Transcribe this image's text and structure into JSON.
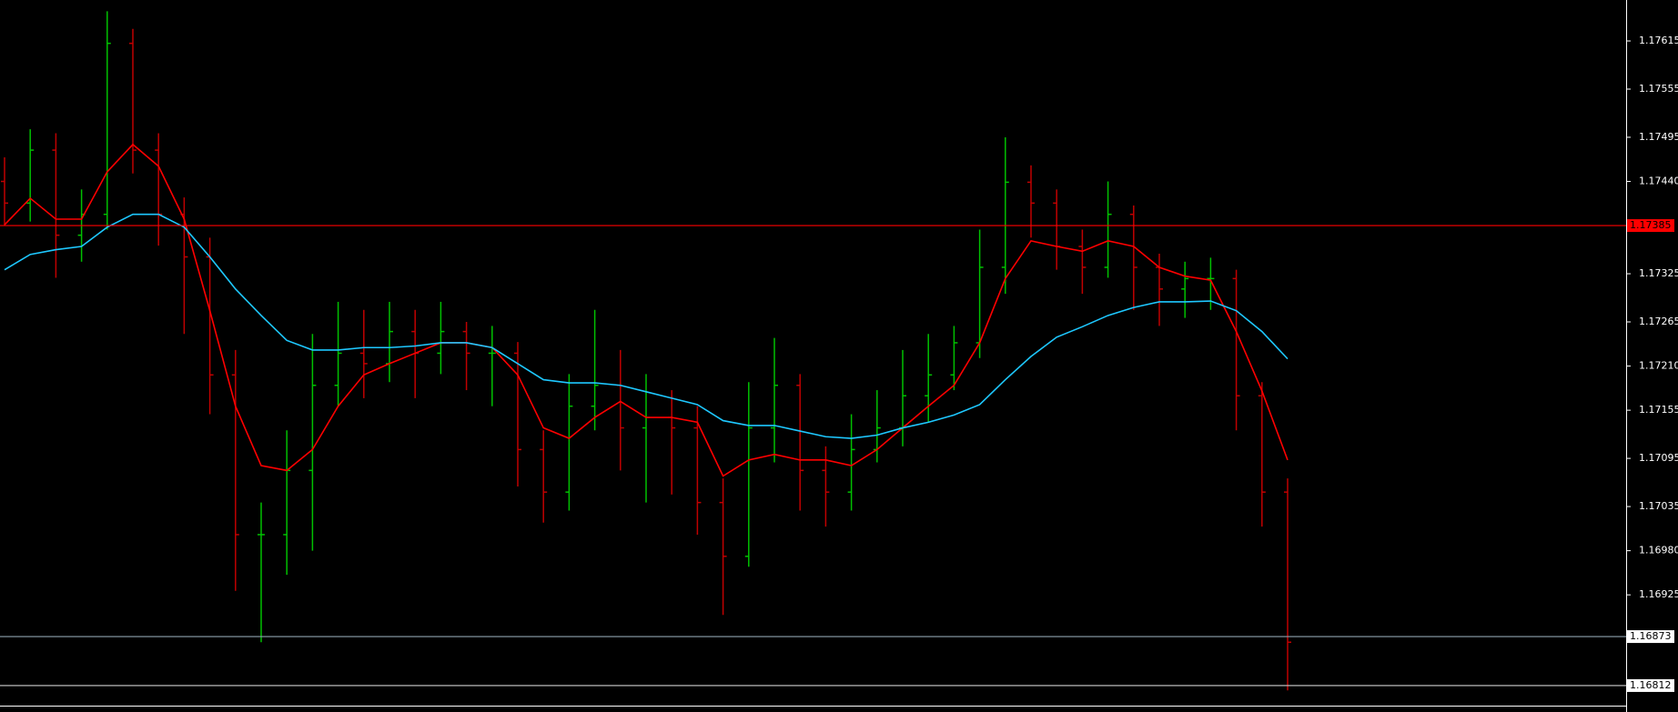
{
  "chart_data": {
    "type": "ohlc",
    "ylim": [
      1.16787,
      1.17666
    ],
    "yticks": [
      1.17615,
      1.17555,
      1.17495,
      {
        "value": 1.1744,
        "label": "1.17440"
      },
      1.17325,
      1.17265,
      {
        "value": 1.1721,
        "label": "1.17210"
      },
      1.17155,
      1.17095,
      1.17035,
      {
        "value": 1.1698,
        "label": "1.16980"
      },
      1.16925
    ],
    "up_color": "#00c000",
    "down_color": "#c00000",
    "open": [
      1.1744,
      1.17413,
      1.17479,
      1.17373,
      1.17399,
      1.17612,
      1.17479,
      1.17399,
      1.17346,
      1.17199,
      1.17,
      1.17,
      1.1708,
      1.17186,
      1.17226,
      1.17213,
      1.17253,
      1.17226,
      1.17253,
      1.17226,
      1.17226,
      1.17106,
      1.17053,
      1.1716,
      1.17186,
      1.17133,
      1.17146,
      1.17133,
      1.1704,
      1.16973,
      1.17133,
      1.17186,
      1.1708,
      1.17053,
      1.17106,
      1.17133,
      1.17173,
      1.17199,
      1.17239,
      1.17333,
      1.17439,
      1.17413,
      1.17359,
      1.17333,
      1.17399,
      1.17333,
      1.17306,
      1.17319,
      1.17319,
      1.17173,
      1.17053
    ],
    "high": [
      1.1747,
      1.17505,
      1.175,
      1.1743,
      1.17652,
      1.1763,
      1.175,
      1.1742,
      1.1737,
      1.1723,
      1.1704,
      1.1713,
      1.1725,
      1.1729,
      1.1728,
      1.1729,
      1.1728,
      1.1729,
      1.17265,
      1.1726,
      1.1724,
      1.1713,
      1.172,
      1.1728,
      1.1723,
      1.172,
      1.1718,
      1.1716,
      1.1707,
      1.1719,
      1.17245,
      1.172,
      1.1711,
      1.1715,
      1.1718,
      1.1723,
      1.1725,
      1.1726,
      1.1738,
      1.17495,
      1.1746,
      1.1743,
      1.1738,
      1.1744,
      1.1741,
      1.1735,
      1.1734,
      1.17345,
      1.1733,
      1.1719,
      1.1707
    ],
    "low": [
      1.17385,
      1.1739,
      1.1732,
      1.1734,
      1.1738,
      1.1745,
      1.1736,
      1.1725,
      1.1715,
      1.1693,
      1.16866,
      1.1695,
      1.1698,
      1.1716,
      1.1717,
      1.1719,
      1.1717,
      1.172,
      1.1718,
      1.1716,
      1.1706,
      1.17015,
      1.1703,
      1.1713,
      1.1708,
      1.1704,
      1.1705,
      1.17,
      1.169,
      1.1696,
      1.1709,
      1.1703,
      1.1701,
      1.1703,
      1.1709,
      1.1711,
      1.1714,
      1.1718,
      1.1722,
      1.173,
      1.1737,
      1.1733,
      1.173,
      1.1732,
      1.1728,
      1.1726,
      1.1727,
      1.1728,
      1.1713,
      1.1701,
      1.16806
    ],
    "close": [
      1.17413,
      1.17479,
      1.17373,
      1.17399,
      1.17612,
      1.17479,
      1.17399,
      1.17346,
      1.17199,
      1.17,
      1.17,
      1.1708,
      1.17186,
      1.17226,
      1.17213,
      1.17253,
      1.17226,
      1.17253,
      1.17226,
      1.17226,
      1.17106,
      1.17053,
      1.1716,
      1.17186,
      1.17133,
      1.17146,
      1.17133,
      1.1704,
      1.16973,
      1.17133,
      1.17186,
      1.1708,
      1.17053,
      1.17106,
      1.17133,
      1.17173,
      1.17199,
      1.17239,
      1.17333,
      1.17439,
      1.17413,
      1.17359,
      1.17333,
      1.17399,
      1.17333,
      1.17306,
      1.17319,
      1.17319,
      1.17173,
      1.17053,
      1.16866
    ],
    "series": [
      {
        "color": "#ff0000",
        "values": [
          1.17386,
          1.17419,
          1.17393,
          1.17393,
          1.17452,
          1.17486,
          1.17459,
          1.17393,
          1.17279,
          1.1716,
          1.17086,
          1.1708,
          1.17106,
          1.1716,
          1.17199,
          1.17213,
          1.17226,
          1.17239,
          1.17239,
          1.17233,
          1.17199,
          1.17133,
          1.1712,
          1.17146,
          1.17166,
          1.17146,
          1.17146,
          1.1714,
          1.17073,
          1.17093,
          1.171,
          1.17093,
          1.17093,
          1.17086,
          1.17106,
          1.17133,
          1.1716,
          1.17186,
          1.17239,
          1.17319,
          1.17366,
          1.17359,
          1.17353,
          1.17366,
          1.17359,
          1.17333,
          1.17322,
          1.17317,
          1.17253,
          1.17179,
          1.17093
        ]
      },
      {
        "color": "#1ec8ff",
        "values": [
          1.1733,
          1.17349,
          1.17355,
          1.17359,
          1.17383,
          1.17399,
          1.17399,
          1.17383,
          1.17346,
          1.17306,
          1.17273,
          1.17242,
          1.1723,
          1.1723,
          1.17233,
          1.17233,
          1.17235,
          1.17239,
          1.17239,
          1.17233,
          1.17213,
          1.17193,
          1.17189,
          1.17189,
          1.17186,
          1.17178,
          1.1717,
          1.17162,
          1.17142,
          1.17136,
          1.17136,
          1.17129,
          1.17122,
          1.1712,
          1.17124,
          1.17133,
          1.1714,
          1.17149,
          1.17162,
          1.17193,
          1.17222,
          1.17246,
          1.17259,
          1.17273,
          1.17283,
          1.1729,
          1.1729,
          1.17291,
          1.17279,
          1.17253,
          1.17219
        ]
      }
    ],
    "hlines": [
      {
        "value": 1.17385,
        "label": "1.17385",
        "color": "#ff0000",
        "label_bg": "#ff0000",
        "label_color": "#000000"
      },
      {
        "value": 1.16873,
        "label": "1.16873",
        "color": "#8fa3b0",
        "label_bg": "#ffffff",
        "label_color": "#000000"
      },
      {
        "value": 1.16812,
        "label": "1.16812",
        "color": "#d0d0d0",
        "label_bg": "#ffffff",
        "label_color": "#000000"
      }
    ]
  }
}
